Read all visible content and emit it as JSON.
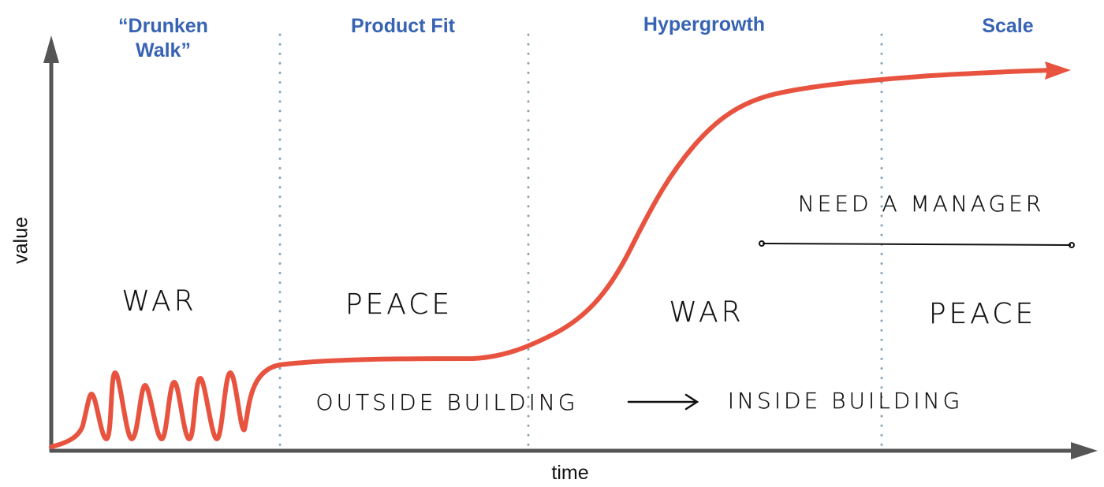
{
  "phases": [
    {
      "label_line1": "“Drunken",
      "label_line2": "Walk”"
    },
    {
      "label": "Product Fit"
    },
    {
      "label": "Hypergrowth"
    },
    {
      "label": "Scale"
    }
  ],
  "modes": [
    "WAR",
    "PEACE",
    "WAR",
    "PEACE"
  ],
  "annotations": {
    "need_manager": "NEED A MANAGER",
    "outside": "OUTSIDE BUILDING",
    "inside": "INSIDE BUILDING"
  },
  "axes": {
    "x_label": "time",
    "y_label": "value"
  },
  "colors": {
    "phase_label": "#3763b3",
    "curve": "#e8533f",
    "axis": "#555555",
    "divider": "#8aa3b5"
  }
}
